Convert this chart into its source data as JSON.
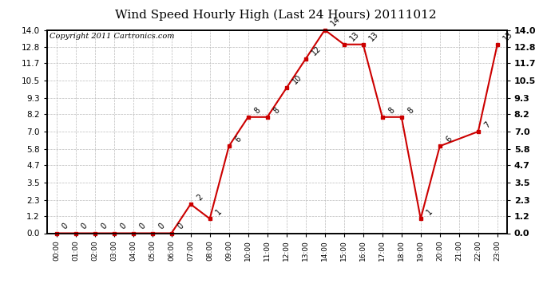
{
  "title": "Wind Speed Hourly High (Last 24 Hours) 20111012",
  "copyright": "Copyright 2011 Cartronics.com",
  "hours": [
    "00:00",
    "01:00",
    "02:00",
    "03:00",
    "04:00",
    "05:00",
    "06:00",
    "07:00",
    "08:00",
    "09:00",
    "10:00",
    "11:00",
    "12:00",
    "13:00",
    "14:00",
    "15:00",
    "16:00",
    "17:00",
    "18:00",
    "19:00",
    "20:00",
    "21:00",
    "22:00",
    "23:00"
  ],
  "values": [
    0,
    0,
    0,
    0,
    0,
    0,
    0,
    2,
    1,
    6,
    8,
    8,
    10,
    12,
    14,
    13,
    13,
    8,
    8,
    1,
    6,
    7,
    13
  ],
  "x_indices": [
    0,
    1,
    2,
    3,
    4,
    5,
    6,
    7,
    8,
    9,
    10,
    11,
    12,
    13,
    14,
    15,
    16,
    17,
    18,
    19,
    20,
    22,
    23
  ],
  "ylim": [
    0.0,
    14.0
  ],
  "yticks": [
    0.0,
    1.2,
    2.3,
    3.5,
    4.7,
    5.8,
    7.0,
    8.2,
    9.3,
    10.5,
    11.7,
    12.8,
    14.0
  ],
  "line_color": "#cc0000",
  "marker_color": "#cc0000",
  "bg_color": "#ffffff",
  "grid_color": "#bbbbbb",
  "title_fontsize": 11,
  "copyright_fontsize": 7,
  "label_fontsize": 7
}
